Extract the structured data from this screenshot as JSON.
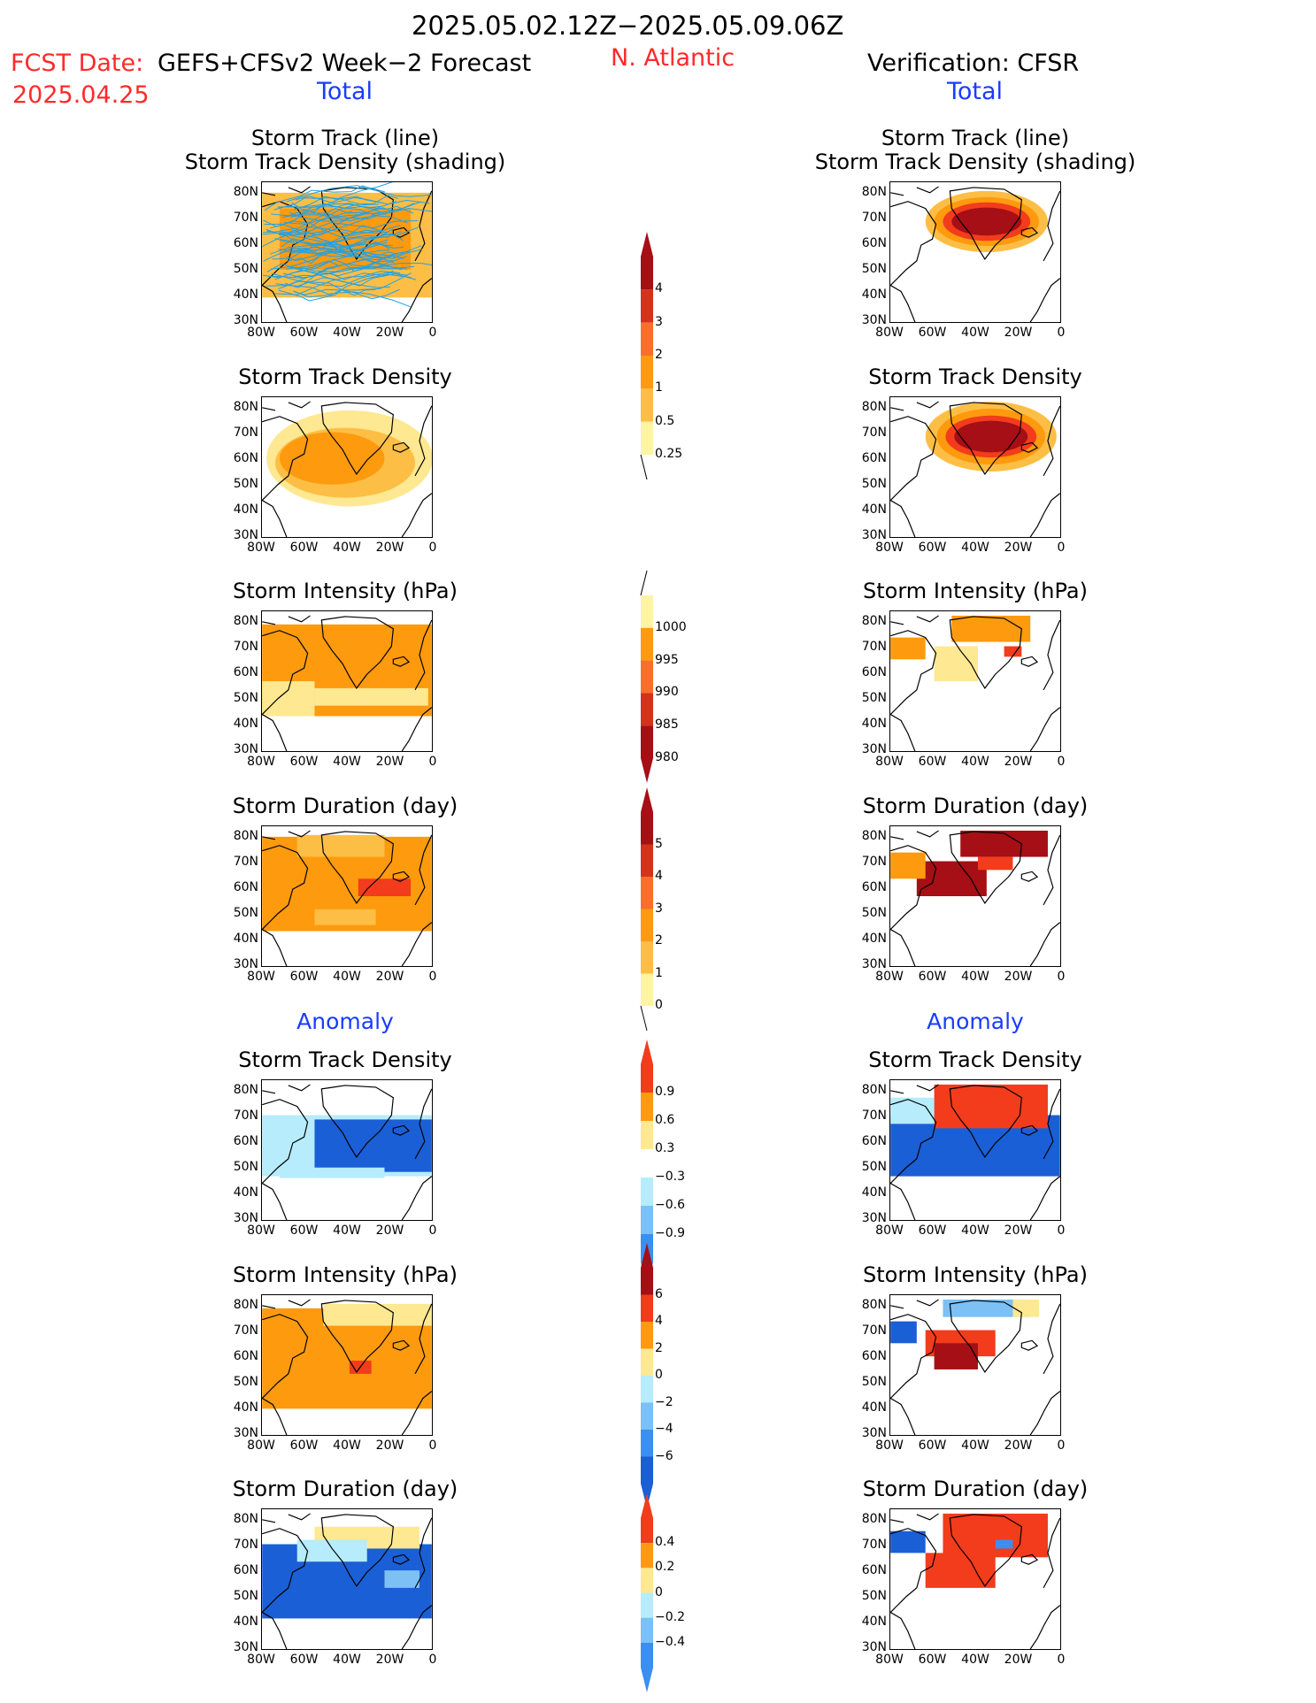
{
  "header": {
    "date_range": "2025.05.02.12Z−2025.05.09.06Z",
    "fcst_label": "FCST Date:",
    "fcst_model": "GEFS+CFSv2 Week−2 Forecast",
    "fcst_date": "2025.04.25",
    "region": "N. Atlantic",
    "verification": "Verification: CFSR",
    "total_left": "Total",
    "total_right": "Total",
    "anomaly_left": "Anomaly",
    "anomaly_right": "Anomaly"
  },
  "panel_titles": {
    "track_line": "Storm Track (line)",
    "track_density_shading": "Storm Track Density (shading)",
    "track_density": "Storm Track Density",
    "intensity": "Storm Intensity (hPa)",
    "duration": "Storm Duration (day)"
  },
  "axes": {
    "lat_labels": [
      "80N",
      "70N",
      "60N",
      "50N",
      "40N",
      "30N"
    ],
    "lon_labels": [
      "80W",
      "60W",
      "40W",
      "20W",
      "0"
    ]
  },
  "colorbars": {
    "density": {
      "labels": [
        "4",
        "3",
        "2",
        "1",
        "0.5",
        "0.25"
      ],
      "colors": [
        "#a50f15",
        "#d7301f",
        "#fc6d2c",
        "#fe9a0e",
        "#fdbe45",
        "#fef3a6"
      ]
    },
    "intensity": {
      "labels": [
        "1000",
        "995",
        "990",
        "985",
        "980"
      ],
      "colors": [
        "#fef3a6",
        "#fe9a0e",
        "#fc6d2c",
        "#d7301f",
        "#a50f15"
      ]
    },
    "duration": {
      "labels": [
        "5",
        "4",
        "3",
        "2",
        "1",
        "0"
      ],
      "colors": [
        "#a50f15",
        "#d7301f",
        "#fc6d2c",
        "#fe9a0e",
        "#fdbe45",
        "#fef3a6"
      ]
    },
    "anom_density": {
      "labels": [
        "0.9",
        "0.6",
        "0.3",
        "−0.3",
        "−0.6",
        "−0.9"
      ]
    },
    "anom_intensity": {
      "labels": [
        "6",
        "4",
        "2",
        "0",
        "−2",
        "−4",
        "−6"
      ]
    },
    "anom_duration": {
      "labels": [
        "0.4",
        "0.2",
        "0",
        "−0.2",
        "−0.4"
      ]
    }
  },
  "colors": {
    "warm_dark": "#a50f15",
    "warm_red": "#f23c1c",
    "warm_orange": "#fe9a0e",
    "warm_light": "#fdbe45",
    "warm_pale": "#fee891",
    "cool_pale": "#b6ecfb",
    "cool_light": "#7cc0f5",
    "cool_mid": "#3a8ff0",
    "cool_dark": "#1a5fd6",
    "track_line": "#1fa2e8"
  }
}
